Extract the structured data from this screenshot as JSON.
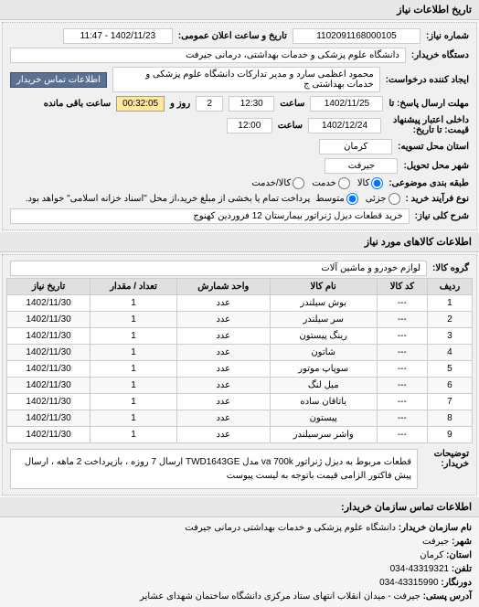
{
  "tab_title": "تاریخ اطلاعات نیاز",
  "header": {
    "req_number_label": "شماره نیاز:",
    "req_number": "1102091168000105",
    "announce_label": "تاریخ و ساعت اعلان عمومی:",
    "announce_value": "1402/11/23 - 11:47",
    "buyer_org_label": "دستگاه خریدار:",
    "buyer_org": "دانشگاه علوم پزشکی و خدمات بهداشتی، درمانی جیرفت",
    "requester_label": "ایجاد کننده درخواست:",
    "requester": "محمود اعظمی سارد و مدیر تدارکات دانشگاه علوم پزشکی و خدمات بهداشتی ج",
    "contact_btn": "اطلاعات تماس خریدار",
    "deadline_send_label": "مهلت ارسال پاسخ: تا",
    "deadline_send_date": "1402/11/25",
    "time_label": "ساعت",
    "deadline_send_time": "12:30",
    "days_label": "روز و",
    "days_value": "2",
    "remain_label": "ساعت باقی مانده",
    "remain_time": "00:32:05",
    "deadline_price_label": "داخلی اعتبار پیشنهاد\nقیمت: تا تاریخ:",
    "deadline_price_date": "1402/12/24",
    "deadline_price_time": "12:00",
    "province_label": "استان محل تسویه:",
    "province": "کرمان",
    "city_label": "شهر محل تحویل:",
    "city": "جیرفت",
    "subject_type_label": "طبقه بندی موضوعی:",
    "radio_goods": "کالا",
    "radio_service": "خدمت",
    "radio_goods_service": "کالا/خدمت",
    "buy_type_label": "نوع فرآیند خرید :",
    "radio_small": "جزئی",
    "radio_medium": "متوسط",
    "buy_note": "پرداخت تمام یا بخشی از مبلغ خرید،از محل \"اسناد خزانه اسلامی\" خواهد بود.",
    "need_title_label": "شرح کلی نیاز:",
    "need_title": "خرید قطعات دیزل ژنراتور بیمارستان 12 فروردین کهنوج"
  },
  "goods_section_title": "اطلاعات کالاهای مورد نیاز",
  "goods_group_label": "گروه کالا:",
  "goods_group": "لوازم خودرو و ماشین آلات",
  "table": {
    "columns": [
      "ردیف",
      "کد کالا",
      "نام کالا",
      "واحد شمارش",
      "تعداد / مقدار",
      "تاریخ نیاز"
    ],
    "rows": [
      [
        "1",
        "---",
        "بوش سیلندر",
        "عدد",
        "1",
        "1402/11/30"
      ],
      [
        "2",
        "---",
        "سر سیلندر",
        "عدد",
        "1",
        "1402/11/30"
      ],
      [
        "3",
        "---",
        "رینگ پیستون",
        "عدد",
        "1",
        "1402/11/30"
      ],
      [
        "4",
        "---",
        "شاتون",
        "عدد",
        "1",
        "1402/11/30"
      ],
      [
        "5",
        "---",
        "سوپاپ موتور",
        "عدد",
        "1",
        "1402/11/30"
      ],
      [
        "6",
        "---",
        "میل لنگ",
        "عدد",
        "1",
        "1402/11/30"
      ],
      [
        "7",
        "---",
        "یاتاقان ساده",
        "عدد",
        "1",
        "1402/11/30"
      ],
      [
        "8",
        "---",
        "پیستون",
        "عدد",
        "1",
        "1402/11/30"
      ],
      [
        "9",
        "---",
        "واشر سرسیلندر",
        "عدد",
        "1",
        "1402/11/30"
      ]
    ]
  },
  "buyer_notes_label": "توضیحات\nخریدار:",
  "buyer_notes": "قطعات مربوط به دیزل ژنراتور va 700k مدل TWD1643GE ارسال 7 روزه ، بازپرداخت 2 ماهه ، ارسال پیش فاکتور الزامی قیمت باتوجه به لیست پیوست",
  "contact_section_title": "اطلاعات تماس سازمان خریدار:",
  "contact": {
    "org_label": "نام سازمان خریدار:",
    "org": "دانشگاه علوم پزشکی و خدمات بهداشتی درمانی جیرفت",
    "city_label": "شهر:",
    "city": "جیرفت",
    "province_label": "استان:",
    "province": "کرمان",
    "phone_label": "تلفن:",
    "phone": "43319321-034",
    "fax_label": "دورنگار:",
    "fax": "43315990-034",
    "address_label": "آدرس پستی:",
    "address": "جیرفت - میدان انقلاب انتهای ستاد مرکزی دانشگاه ساختمان شهدای عشایر"
  }
}
